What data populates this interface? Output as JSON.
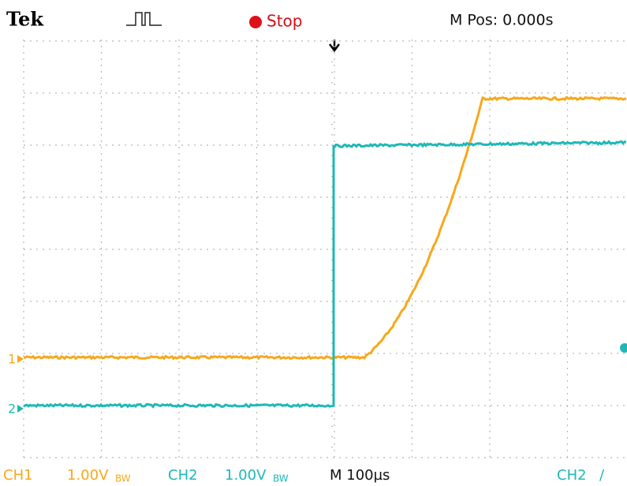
{
  "header": {
    "brand": "Tek",
    "state": "Stop",
    "position": "M Pos: 0.000s"
  },
  "markers": {
    "ch1": "1",
    "ch2": "2"
  },
  "footer": {
    "ch1": {
      "name": "CH1",
      "scale": "1.00V",
      "bw": "BW"
    },
    "ch2": {
      "name": "CH2",
      "scale": "1.00V",
      "bw": "BW"
    },
    "timebase": "M 100µs",
    "trigger": {
      "source": "CH2",
      "slope": "∕"
    }
  }
}
